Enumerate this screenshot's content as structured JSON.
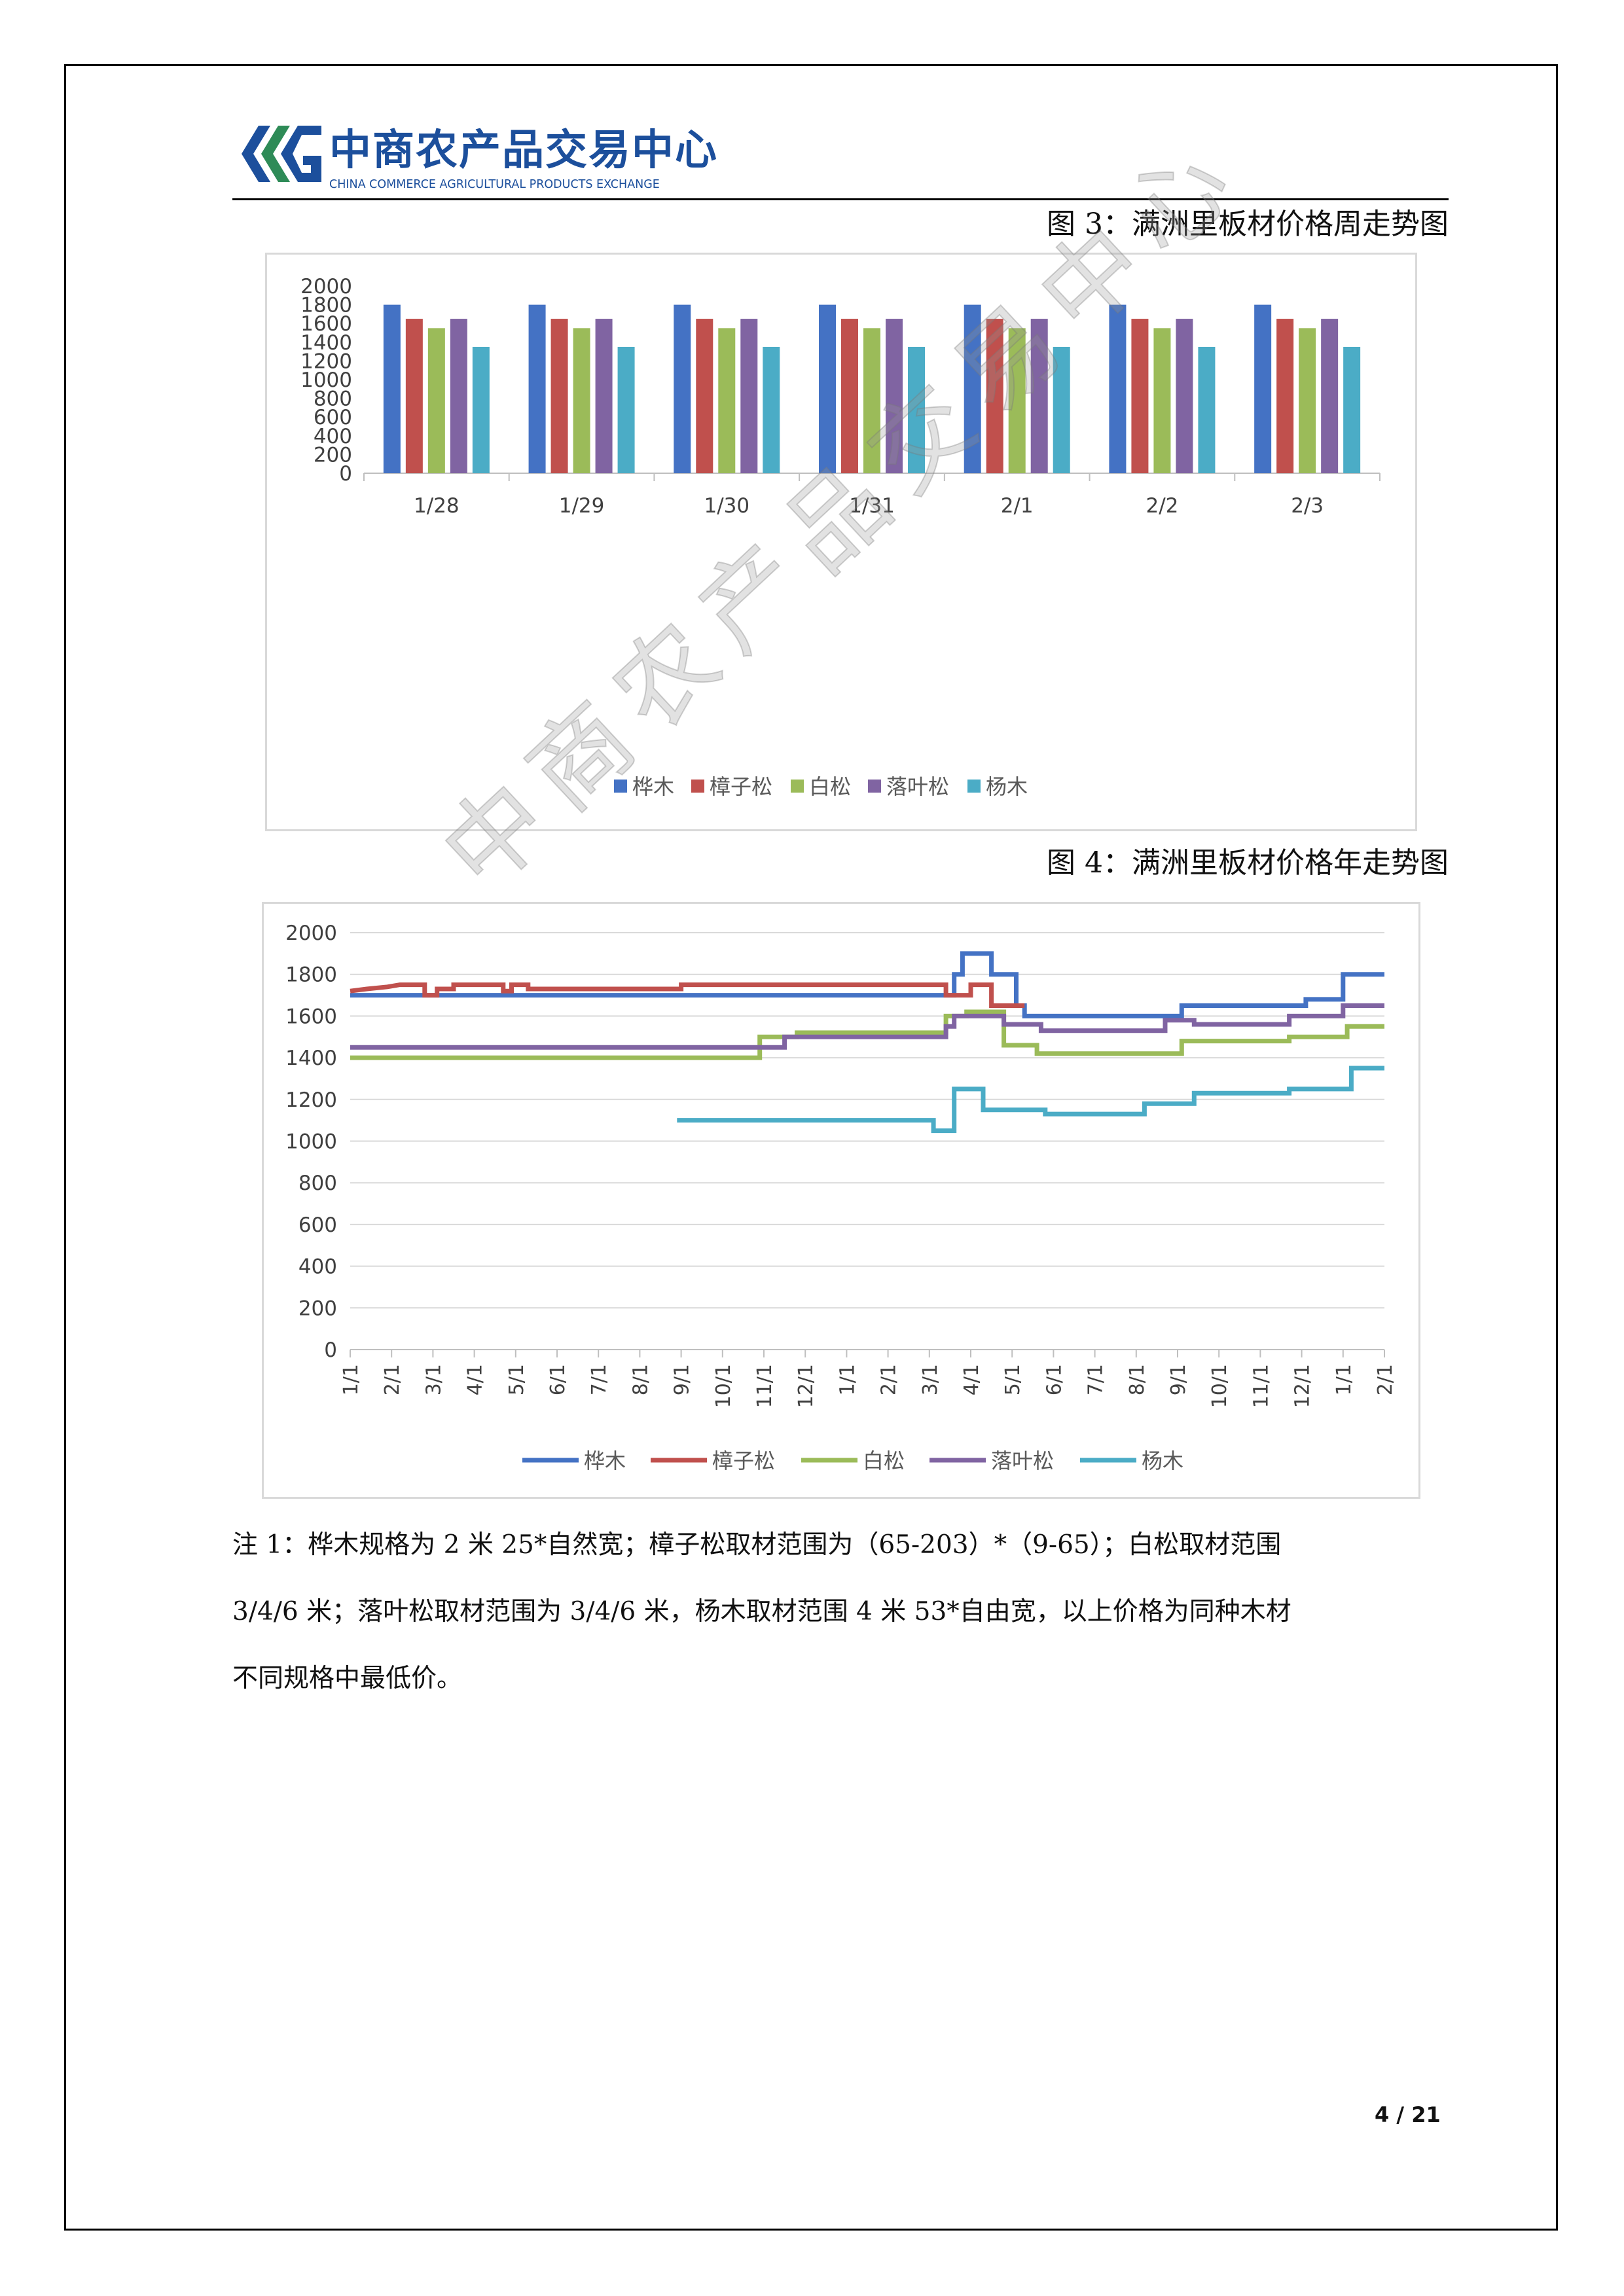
{
  "header": {
    "logo_cn": "中商农产品交易中心",
    "logo_en": "CHINA COMMERCE AGRICULTURAL PRODUCTS EXCHANGE"
  },
  "watermark": "中商农产品交易中心",
  "figure3": {
    "title": "图 3：满洲里板材价格周走势图"
  },
  "figure4": {
    "title": "图 4：满洲里板材价格年走势图"
  },
  "colors": {
    "桦木": "#4472c4",
    "樟子松": "#c0504d",
    "白松": "#9bbb59",
    "落叶松": "#8064a2",
    "杨木": "#4bacc6"
  },
  "chart_data": [
    {
      "type": "bar",
      "title": "",
      "categories": [
        "1/28",
        "1/29",
        "1/30",
        "1/31",
        "2/1",
        "2/2",
        "2/3"
      ],
      "ylim": [
        0,
        2000
      ],
      "yticks": [
        "0",
        "200",
        "400",
        "600",
        "800",
        "1000",
        "1200",
        "1400",
        "1600",
        "1800",
        "2000"
      ],
      "grid": false,
      "legend_position": "bottom",
      "series": [
        {
          "name": "桦木",
          "values": [
            1800,
            1800,
            1800,
            1800,
            1800,
            1800,
            1800
          ]
        },
        {
          "name": "樟子松",
          "values": [
            1650,
            1650,
            1650,
            1650,
            1650,
            1650,
            1650
          ]
        },
        {
          "name": "白松",
          "values": [
            1550,
            1550,
            1550,
            1550,
            1550,
            1550,
            1550
          ]
        },
        {
          "name": "落叶松",
          "values": [
            1650,
            1650,
            1650,
            1650,
            1650,
            1650,
            1650
          ]
        },
        {
          "name": "杨木",
          "values": [
            1350,
            1350,
            1350,
            1350,
            1350,
            1350,
            1350
          ]
        }
      ]
    },
    {
      "type": "line",
      "title": "",
      "x_ticks": [
        "1/1",
        "2/1",
        "3/1",
        "4/1",
        "5/1",
        "6/1",
        "7/1",
        "8/1",
        "9/1",
        "10/1",
        "11/1",
        "12/1",
        "1/1",
        "2/1",
        "3/1",
        "4/1",
        "5/1",
        "6/1",
        "7/1",
        "8/1",
        "9/1",
        "10/1",
        "11/1",
        "12/1",
        "1/1",
        "2/1"
      ],
      "xlim": [
        0,
        25
      ],
      "ylim": [
        0,
        2000
      ],
      "yticks": [
        "0",
        "200",
        "400",
        "600",
        "800",
        "1000",
        "1200",
        "1400",
        "1600",
        "1800",
        "2000"
      ],
      "grid": true,
      "legend_position": "bottom",
      "series": [
        {
          "name": "桦木",
          "points": [
            [
              0,
              1700
            ],
            [
              14.6,
              1700
            ],
            [
              14.6,
              1800
            ],
            [
              14.8,
              1800
            ],
            [
              14.8,
              1900
            ],
            [
              15.5,
              1900
            ],
            [
              15.5,
              1800
            ],
            [
              16.1,
              1800
            ],
            [
              16.1,
              1650
            ],
            [
              16.3,
              1650
            ],
            [
              16.3,
              1600
            ],
            [
              20.1,
              1600
            ],
            [
              20.1,
              1650
            ],
            [
              23.1,
              1650
            ],
            [
              23.1,
              1680
            ],
            [
              24.0,
              1680
            ],
            [
              24.0,
              1800
            ],
            [
              25,
              1800
            ]
          ]
        },
        {
          "name": "樟子松",
          "points": [
            [
              0,
              1720
            ],
            [
              0.4,
              1730
            ],
            [
              0.9,
              1740
            ],
            [
              1.2,
              1750
            ],
            [
              1.8,
              1750
            ],
            [
              1.8,
              1700
            ],
            [
              2.1,
              1700
            ],
            [
              2.1,
              1730
            ],
            [
              2.5,
              1730
            ],
            [
              2.5,
              1750
            ],
            [
              3.7,
              1750
            ],
            [
              3.7,
              1720
            ],
            [
              3.9,
              1720
            ],
            [
              3.9,
              1750
            ],
            [
              4.3,
              1750
            ],
            [
              4.3,
              1730
            ],
            [
              8.0,
              1730
            ],
            [
              8.0,
              1750
            ],
            [
              14.4,
              1750
            ],
            [
              14.4,
              1700
            ],
            [
              15.0,
              1700
            ],
            [
              15.0,
              1750
            ],
            [
              15.5,
              1750
            ],
            [
              15.5,
              1650
            ],
            [
              16.3,
              1650
            ]
          ]
        },
        {
          "name": "白松",
          "points": [
            [
              0,
              1400
            ],
            [
              9.9,
              1400
            ],
            [
              9.9,
              1500
            ],
            [
              10.8,
              1500
            ],
            [
              10.8,
              1520
            ],
            [
              14.4,
              1520
            ],
            [
              14.4,
              1600
            ],
            [
              14.9,
              1600
            ],
            [
              14.9,
              1620
            ],
            [
              15.8,
              1620
            ],
            [
              15.8,
              1460
            ],
            [
              16.6,
              1460
            ],
            [
              16.6,
              1420
            ],
            [
              20.1,
              1420
            ],
            [
              20.1,
              1480
            ],
            [
              22.7,
              1480
            ],
            [
              22.7,
              1500
            ],
            [
              24.1,
              1500
            ],
            [
              24.1,
              1550
            ],
            [
              25,
              1550
            ]
          ]
        },
        {
          "name": "落叶松",
          "points": [
            [
              0,
              1450
            ],
            [
              10.5,
              1450
            ],
            [
              10.5,
              1500
            ],
            [
              14.4,
              1500
            ],
            [
              14.4,
              1550
            ],
            [
              14.6,
              1550
            ],
            [
              14.6,
              1600
            ],
            [
              15.8,
              1600
            ],
            [
              15.8,
              1560
            ],
            [
              16.7,
              1560
            ],
            [
              16.7,
              1530
            ],
            [
              19.7,
              1530
            ],
            [
              19.7,
              1580
            ],
            [
              20.4,
              1580
            ],
            [
              20.4,
              1560
            ],
            [
              22.7,
              1560
            ],
            [
              22.7,
              1600
            ],
            [
              24.0,
              1600
            ],
            [
              24.0,
              1650
            ],
            [
              25,
              1650
            ]
          ]
        },
        {
          "name": "杨木",
          "points": [
            [
              7.9,
              1100
            ],
            [
              14.1,
              1100
            ],
            [
              14.1,
              1050
            ],
            [
              14.6,
              1050
            ],
            [
              14.6,
              1250
            ],
            [
              15.3,
              1250
            ],
            [
              15.3,
              1150
            ],
            [
              16.8,
              1150
            ],
            [
              16.8,
              1130
            ],
            [
              19.2,
              1130
            ],
            [
              19.2,
              1180
            ],
            [
              20.4,
              1180
            ],
            [
              20.4,
              1230
            ],
            [
              22.7,
              1230
            ],
            [
              22.7,
              1250
            ],
            [
              24.2,
              1250
            ],
            [
              24.2,
              1350
            ],
            [
              25,
              1350
            ]
          ]
        }
      ]
    }
  ],
  "note": {
    "line1": "注 1：桦木规格为 2 米 25*自然宽；樟子松取材范围为（65-203）*（9-65）；白松取材范围",
    "line2": "3/4/6 米；落叶松取材范围为 3/4/6 米，杨木取材范围 4 米 53*自由宽，以上价格为同种木材",
    "line3": "不同规格中最低价。"
  },
  "page_number": "4 / 21"
}
